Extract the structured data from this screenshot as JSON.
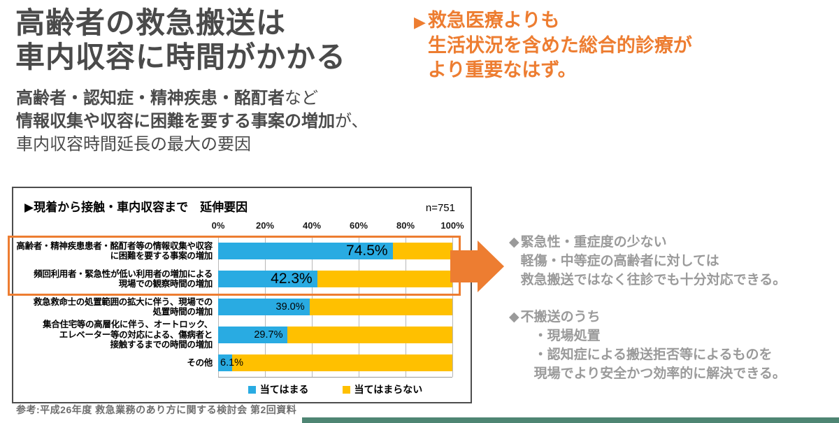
{
  "colors": {
    "accent_orange": "#ED7D31",
    "bar_blue": "#29ABE2",
    "bar_yellow": "#FFC000",
    "title_gray": "#4A4A4A",
    "annotation_gray": "#9A9A9A",
    "source_gray": "#6F6F6F",
    "footer_teal": "#4E8573"
  },
  "header": {
    "title_lines": [
      "高齢者の救急搬送は",
      "車内収容に時間がかかる"
    ],
    "subtitle_lines": [
      [
        {
          "text": "高齢者・認知症・精神疾患・酩酊者",
          "bold": true
        },
        {
          "text": "など",
          "bold": false
        }
      ],
      [
        {
          "text": "情報収集や収容に困難を要する事案の増加",
          "bold": true
        },
        {
          "text": "が、",
          "bold": false
        }
      ],
      [
        {
          "text": "車内収容時間延長の最大の要因",
          "bold": false
        }
      ]
    ]
  },
  "headline": {
    "marker": "▶",
    "lines": [
      "救急医療よりも",
      "生活状況を含めた総合的診療が",
      "より重要なはず。"
    ]
  },
  "chart": {
    "title": "▶現着から接触・車内収容まで　延伸要因",
    "sample_label": "n=751",
    "axis_ticks": [
      "0%",
      "20%",
      "40%",
      "60%",
      "80%",
      "100%"
    ],
    "legend": [
      {
        "label": "当てはまる",
        "color_key": "bar_blue"
      },
      {
        "label": "当てはまらない",
        "color_key": "bar_yellow"
      }
    ],
    "rows": [
      {
        "label_lines": [
          "高齢者・精神疾患患者・酩酊者等の情報収集や収容",
          "に困難を要する事案の増加"
        ],
        "value": 74.5,
        "value_label": "74.5%",
        "emphasis": true
      },
      {
        "label_lines": [
          "頻回利用者・緊急性が低い利用者の増加による",
          "現場での観察時間の増加"
        ],
        "value": 42.3,
        "value_label": "42.3%",
        "emphasis": true
      },
      {
        "label_lines": [
          "救急救命士の処置範囲の拡大に伴う、現場での",
          "処置時間の増加"
        ],
        "value": 39.0,
        "value_label": "39.0%",
        "emphasis": false
      },
      {
        "label_lines": [
          "集合住宅等の高層化に伴う、オートロック、",
          "エレベーター等の対応による、傷病者と",
          "接触するまでの時間の増加"
        ],
        "value": 29.7,
        "value_label": "29.7%",
        "emphasis": false
      },
      {
        "label_lines": [
          "その他"
        ],
        "value": 6.1,
        "value_label": "6.1%",
        "emphasis": false
      }
    ]
  },
  "chart_data": {
    "type": "bar",
    "orientation": "horizontal",
    "stacked": true,
    "title": "▶現着から接触・車内収容まで　延伸要因",
    "sample_size": "n=751",
    "categories": [
      "高齢者・精神疾患患者・酩酊者等の情報収集や収容に困難を要する事案の増加",
      "頻回利用者・緊急性が低い利用者の増加による現場での観察時間の増加",
      "救急救命士の処置範囲の拡大に伴う、現場での処置時間の増加",
      "集合住宅等の高層化に伴う、オートロック、エレベーター等の対応による、傷病者と接触するまでの時間の増加",
      "その他"
    ],
    "series": [
      {
        "name": "当てはまる",
        "color": "#29ABE2",
        "values": [
          74.5,
          42.3,
          39.0,
          29.7,
          6.1
        ]
      },
      {
        "name": "当てはまらない",
        "color": "#FFC000",
        "values": [
          25.5,
          57.7,
          61.0,
          70.3,
          93.9
        ]
      }
    ],
    "xlabel": "",
    "ylabel": "",
    "xlim": [
      0,
      100
    ],
    "xticks_percent": [
      0,
      20,
      40,
      60,
      80,
      100
    ],
    "legend_position": "bottom",
    "grid": "vertical",
    "highlighted_rows": [
      0,
      1
    ]
  },
  "annotations": {
    "bullets": [
      {
        "marker": "◆",
        "lines": [
          "緊急性・重症度の少ない",
          "軽傷・中等症の高齢者に対しては",
          "救急搬送ではなく往診でも十分対応できる。"
        ]
      },
      {
        "marker": "◆",
        "lines": [
          "不搬送のうち",
          "　・現場処置",
          "　・認知症による搬送拒否等によるものを",
          "　現場でより安全かつ効率的に解決できる。"
        ]
      }
    ]
  },
  "source": "参考:平成26年度 救急業務のあり方に関する検討会 第2回資料"
}
